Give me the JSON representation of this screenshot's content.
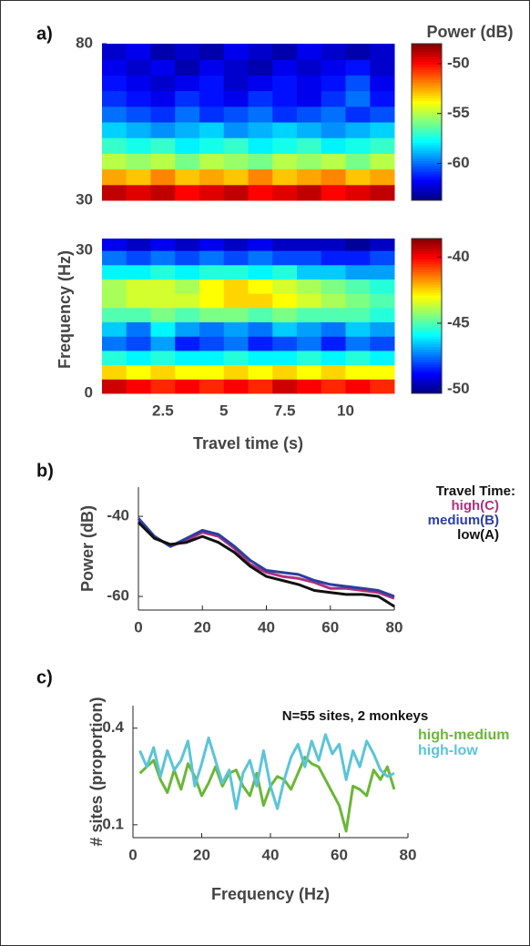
{
  "chart_data": [
    {
      "type": "heatmap",
      "panel": "a)",
      "colorbar_label": "Power (dB)",
      "colormap": "jet",
      "x": [
        0.5,
        1.5,
        2.5,
        3.5,
        4.5,
        5.5,
        6.5,
        7.5,
        8.5,
        9.5,
        10.5,
        11.5
      ],
      "y": [
        32.5,
        37.5,
        42.5,
        47.5,
        52.5,
        57.5,
        62.5,
        67.5,
        72.5,
        77.5
      ],
      "z": [
        [
          -49,
          -49.5,
          -49,
          -50,
          -49.5,
          -49,
          -50,
          -49.5,
          -49,
          -50,
          -49.5,
          -49
        ],
        [
          -52.5,
          -53,
          -52,
          -53,
          -52.5,
          -53,
          -52,
          -53,
          -52.5,
          -52,
          -53,
          -52.5
        ],
        [
          -55,
          -55.5,
          -55,
          -56,
          -55,
          -55.5,
          -56,
          -55,
          -55.5,
          -55,
          -56,
          -55
        ],
        [
          -57,
          -57.5,
          -57,
          -58,
          -57.5,
          -57,
          -58,
          -57.5,
          -57,
          -58,
          -57.5,
          -57
        ],
        [
          -58.5,
          -59,
          -59.5,
          -59,
          -58.5,
          -59.5,
          -59,
          -58.5,
          -59,
          -59.5,
          -59,
          -58.5
        ],
        [
          -60,
          -60.5,
          -61,
          -60,
          -61,
          -60.5,
          -60,
          -61,
          -60.5,
          -60,
          -61,
          -60.5
        ],
        [
          -61,
          -61.5,
          -62,
          -61,
          -61.5,
          -62,
          -61,
          -61.5,
          -62,
          -61,
          -60,
          -61.5
        ],
        [
          -61.5,
          -62,
          -62.5,
          -62,
          -61.5,
          -62.5,
          -62,
          -61.5,
          -62,
          -61.5,
          -60.5,
          -62
        ],
        [
          -62,
          -62.5,
          -62,
          -63,
          -62,
          -62.5,
          -63,
          -62,
          -62.5,
          -62,
          -61.5,
          -62.5
        ],
        [
          -62.5,
          -62,
          -63,
          -62.5,
          -63,
          -62,
          -62.5,
          -63,
          -62,
          -62.5,
          -63,
          -62.5
        ]
      ],
      "xlim": [
        0,
        12
      ],
      "ylim": [
        30,
        80
      ],
      "yticks": [
        30,
        80
      ],
      "clim": [
        -63.7,
        -48
      ],
      "cticks": [
        -50,
        -55,
        -60
      ]
    },
    {
      "type": "heatmap",
      "ylabel": "Frequency (Hz)",
      "xlabel": "Travel time (s)",
      "colormap": "jet",
      "x": [
        0.5,
        1.5,
        2.5,
        3.5,
        4.5,
        5.5,
        6.5,
        7.5,
        8.5,
        9.5,
        10.5,
        11.5
      ],
      "y": [
        1.5,
        4.5,
        7.5,
        10.5,
        13.5,
        16.5,
        19.5,
        22.5,
        25.5,
        28.5,
        31.5
      ],
      "z": [
        [
          -39.5,
          -40,
          -40.5,
          -40,
          -40.5,
          -40,
          -40.5,
          -39.5,
          -40,
          -40.5,
          -40,
          -40.5
        ],
        [
          -42.5,
          -43,
          -42.5,
          -43,
          -43,
          -42.5,
          -43,
          -42.5,
          -43,
          -42.5,
          -43,
          -43
        ],
        [
          -45.5,
          -46,
          -45.5,
          -46,
          -46,
          -45.5,
          -46,
          -46,
          -45.5,
          -46,
          -45.5,
          -46
        ],
        [
          -47.5,
          -48,
          -47,
          -48.5,
          -48,
          -47.5,
          -48.5,
          -48,
          -47.5,
          -48.5,
          -47.5,
          -48
        ],
        [
          -46.5,
          -47.5,
          -46,
          -47,
          -47.5,
          -47,
          -47.5,
          -46.5,
          -47,
          -47.5,
          -46.5,
          -47
        ],
        [
          -45,
          -45,
          -44.5,
          -45,
          -44.5,
          -44.5,
          -45,
          -44.5,
          -45,
          -45,
          -45,
          -45.5
        ],
        [
          -44,
          -43.5,
          -43.5,
          -43.5,
          -43,
          -42.5,
          -42.5,
          -43,
          -43.5,
          -44,
          -44.5,
          -45
        ],
        [
          -44,
          -43.5,
          -43.5,
          -44,
          -43,
          -42.5,
          -43,
          -43.5,
          -44,
          -44.5,
          -45,
          -45.5
        ],
        [
          -46,
          -46,
          -45.5,
          -46,
          -45.5,
          -45.5,
          -46,
          -45.5,
          -46.5,
          -46.5,
          -47,
          -47
        ],
        [
          -47.5,
          -48,
          -47.5,
          -48,
          -47.5,
          -48,
          -47.5,
          -48,
          -48,
          -48.5,
          -48.5,
          -48
        ],
        [
          -49,
          -49.5,
          -49,
          -49.5,
          -49,
          -49.5,
          -49,
          -49.5,
          -49.5,
          -49.5,
          -50,
          -49.5
        ]
      ],
      "xlim": [
        0,
        12
      ],
      "ylim": [
        0,
        32.5
      ],
      "yticks": [
        0,
        30
      ],
      "xticks": [
        2.5,
        5,
        7.5,
        10
      ],
      "clim": [
        -50.3,
        -38.6
      ],
      "cticks": [
        -40,
        -45,
        -50
      ]
    },
    {
      "type": "line",
      "panel": "b)",
      "ylabel": "Power (dB)",
      "legend_title": "Travel Time:",
      "x": [
        0,
        5,
        10,
        15,
        20,
        25,
        30,
        35,
        40,
        45,
        50,
        55,
        60,
        65,
        70,
        75,
        80
      ],
      "series": [
        {
          "name": "high(C)",
          "color": "#b0307e",
          "values": [
            -41,
            -45,
            -47.5,
            -46,
            -44,
            -45,
            -48,
            -52,
            -54,
            -55,
            -55.5,
            -56.5,
            -58,
            -58,
            -58.5,
            -59,
            -60.5
          ]
        },
        {
          "name": "medium(B)",
          "color": "#2b3f9e",
          "values": [
            -40.5,
            -45,
            -47.5,
            -45.5,
            -43.5,
            -44.5,
            -47.5,
            -51,
            -53.5,
            -54,
            -54.5,
            -56,
            -57,
            -57.5,
            -58,
            -58.5,
            -60
          ]
        },
        {
          "name": "low(A)",
          "color": "#111111",
          "values": [
            -41.5,
            -45.5,
            -47,
            -46.5,
            -45,
            -46.5,
            -49,
            -52.5,
            -55,
            -56,
            -57,
            -58.5,
            -59,
            -59.5,
            -59.5,
            -60,
            -62.5
          ]
        }
      ],
      "xlim": [
        0,
        80
      ],
      "ylim": [
        -63.4,
        -32.7
      ],
      "xticks": [
        0,
        20,
        40,
        60,
        80
      ],
      "yticks": [
        -40,
        -60
      ]
    },
    {
      "type": "line",
      "panel": "c)",
      "annotation": "N=55 sites, 2 monkeys",
      "ylabel": "# sites (proportion)",
      "xlabel": "Frequency (Hz)",
      "x": [
        2,
        4,
        6,
        8,
        10,
        12,
        14,
        16,
        18,
        20,
        22,
        24,
        26,
        28,
        30,
        32,
        34,
        36,
        38,
        40,
        42,
        44,
        46,
        48,
        50,
        52,
        54,
        56,
        58,
        60,
        62,
        64,
        66,
        68,
        70,
        72,
        74,
        76
      ],
      "series": [
        {
          "name": "high-medium",
          "color": "#6ab737",
          "values": [
            0.26,
            0.28,
            0.3,
            0.24,
            0.2,
            0.27,
            0.21,
            0.29,
            0.25,
            0.19,
            0.23,
            0.28,
            0.22,
            0.26,
            0.27,
            0.22,
            0.19,
            0.26,
            0.16,
            0.22,
            0.25,
            0.24,
            0.21,
            0.26,
            0.31,
            0.29,
            0.28,
            0.24,
            0.2,
            0.16,
            0.08,
            0.22,
            0.21,
            0.19,
            0.27,
            0.24,
            0.28,
            0.21
          ]
        },
        {
          "name": "high-low",
          "color": "#5bc4d8",
          "values": [
            0.33,
            0.28,
            0.34,
            0.25,
            0.33,
            0.27,
            0.3,
            0.36,
            0.22,
            0.29,
            0.37,
            0.3,
            0.23,
            0.27,
            0.15,
            0.26,
            0.3,
            0.22,
            0.33,
            0.22,
            0.15,
            0.24,
            0.31,
            0.35,
            0.28,
            0.36,
            0.3,
            0.38,
            0.32,
            0.35,
            0.24,
            0.33,
            0.28,
            0.36,
            0.32,
            0.27,
            0.25,
            0.26
          ]
        }
      ],
      "xlim": [
        0,
        80
      ],
      "ylim": [
        0.06,
        0.47
      ],
      "xticks": [
        0,
        20,
        40,
        60,
        80
      ],
      "yticks": [
        0.1,
        0.4
      ]
    }
  ]
}
